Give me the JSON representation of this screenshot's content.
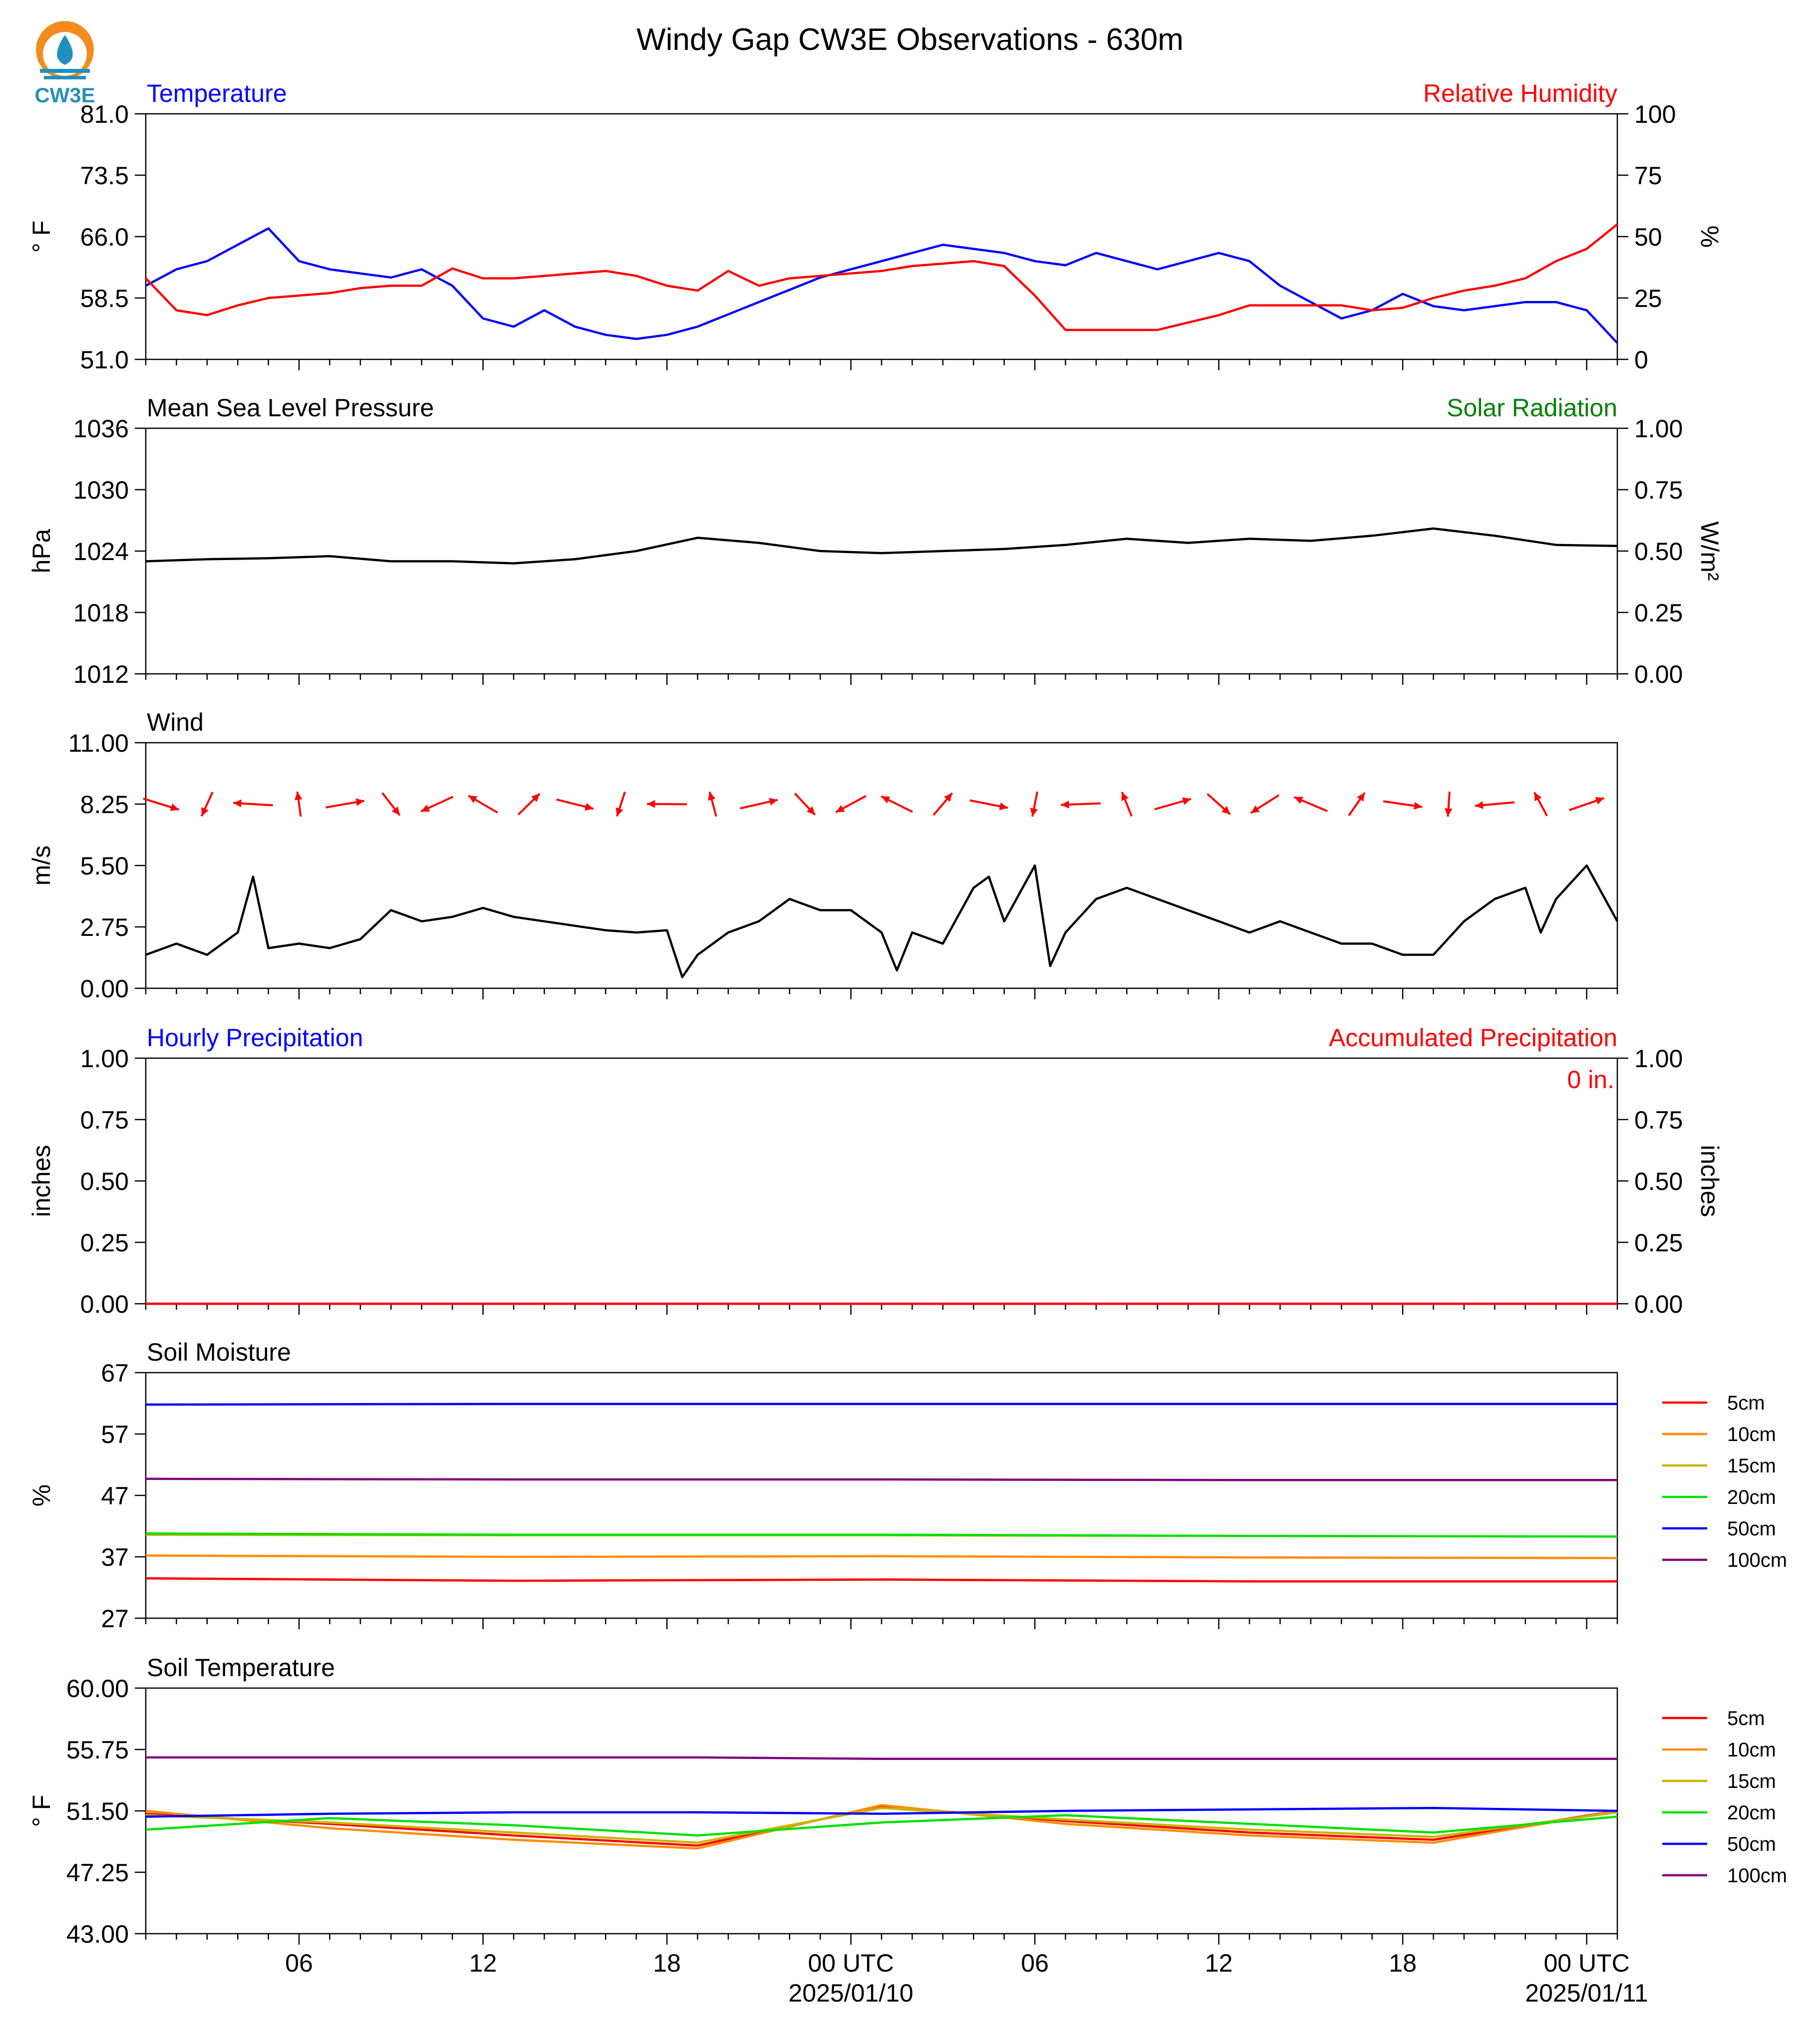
{
  "logo": {
    "text": "CW3E",
    "colors": {
      "orange": "#f28c1e",
      "blue": "#1f8fbf",
      "text": "#2a8fb8"
    }
  },
  "chart_data": [
    {
      "type": "line",
      "id": "temp_rh",
      "title": "Windy Gap CW3E Observations - 630m",
      "left_title": "Temperature",
      "right_title": "Relative Humidity",
      "ylabel": "° F",
      "ylabel2": "%",
      "ylim": [
        51.0,
        81.0
      ],
      "ylim2": [
        0,
        100
      ],
      "yticks": [
        "51.0",
        "58.5",
        "66.0",
        "73.5",
        "81.0"
      ],
      "yticks2": [
        "0",
        "25",
        "50",
        "75",
        "100"
      ],
      "series": [
        {
          "name": "Temperature",
          "color": "#0000ff",
          "axis": "left",
          "x": [
            0,
            1,
            2,
            3,
            4,
            5,
            6,
            7,
            8,
            9,
            10,
            11,
            12,
            13,
            14,
            15,
            16,
            17,
            18,
            19,
            20,
            21,
            22,
            23,
            24,
            25,
            26,
            27,
            28,
            29,
            30,
            31,
            32,
            33,
            34,
            35,
            36,
            37,
            38,
            39,
            40,
            41,
            42,
            43,
            44,
            45,
            46,
            47,
            48
          ],
          "y": [
            60,
            62,
            63,
            65,
            67,
            63,
            62,
            61.5,
            61,
            62,
            60,
            56,
            55,
            57,
            55,
            54,
            53.5,
            54,
            55,
            56.5,
            58,
            59.5,
            61,
            62,
            63,
            64,
            65,
            64.5,
            64,
            63,
            62.5,
            64,
            63,
            62,
            63,
            64,
            63,
            60,
            58,
            56,
            57,
            59,
            57.5,
            57,
            57.5,
            58,
            58,
            57,
            53
          ]
        },
        {
          "name": "Relative Humidity",
          "color": "#ff0000",
          "axis": "right",
          "x": [
            0,
            1,
            2,
            3,
            4,
            5,
            6,
            7,
            8,
            9,
            10,
            11,
            12,
            13,
            14,
            15,
            16,
            17,
            18,
            19,
            20,
            21,
            22,
            23,
            24,
            25,
            26,
            27,
            28,
            29,
            30,
            31,
            32,
            33,
            34,
            35,
            36,
            37,
            38,
            39,
            40,
            41,
            42,
            43,
            44,
            45,
            46,
            47,
            48
          ],
          "y": [
            33,
            20,
            18,
            22,
            25,
            26,
            27,
            29,
            30,
            30,
            37,
            33,
            33,
            34,
            35,
            36,
            34,
            30,
            28,
            36,
            30,
            33,
            34,
            35,
            36,
            38,
            39,
            40,
            38,
            26,
            12,
            12,
            12,
            12,
            15,
            18,
            22,
            22,
            22,
            22,
            20,
            21,
            25,
            28,
            30,
            33,
            40,
            45,
            55
          ]
        }
      ]
    },
    {
      "type": "line",
      "id": "pressure",
      "left_title": "Mean Sea Level Pressure",
      "right_title": "Solar Radiation",
      "ylabel": "hPa",
      "ylabel2": "W/m²",
      "ylim": [
        1012,
        1036
      ],
      "ylim2": [
        0.0,
        1.0
      ],
      "yticks": [
        "1012",
        "1018",
        "1024",
        "1030",
        "1036"
      ],
      "yticks2": [
        "0.00",
        "0.25",
        "0.50",
        "0.75",
        "1.00"
      ],
      "series": [
        {
          "name": "Mean Sea Level Pressure",
          "color": "#000000",
          "axis": "left",
          "x": [
            0,
            2,
            4,
            6,
            8,
            10,
            12,
            14,
            16,
            18,
            20,
            22,
            24,
            26,
            28,
            30,
            32,
            34,
            36,
            38,
            40,
            42,
            44,
            46,
            48
          ],
          "y": [
            1023.0,
            1023.2,
            1023.3,
            1023.5,
            1023.0,
            1023.0,
            1022.8,
            1023.2,
            1024.0,
            1025.3,
            1024.8,
            1024.0,
            1023.8,
            1024.0,
            1024.2,
            1024.6,
            1025.2,
            1024.8,
            1025.2,
            1025.0,
            1025.5,
            1026.2,
            1025.5,
            1024.6,
            1024.5
          ]
        }
      ]
    },
    {
      "type": "line",
      "id": "wind",
      "left_title": "Wind",
      "ylabel": "m/s",
      "ylim": [
        0.0,
        11.0
      ],
      "yticks": [
        "0.00",
        "2.75",
        "5.50",
        "8.25",
        "11.00"
      ],
      "series": [
        {
          "name": "Wind",
          "color": "#000000",
          "axis": "left",
          "x": [
            0,
            1,
            2,
            3,
            3.5,
            4,
            5,
            6,
            7,
            8,
            9,
            10,
            11,
            12,
            13,
            14,
            15,
            16,
            17,
            17.5,
            18,
            19,
            20,
            21,
            22,
            23,
            24,
            24.5,
            25,
            26,
            27,
            27.5,
            28,
            29,
            29.5,
            30,
            31,
            32,
            33,
            34,
            35,
            36,
            37,
            38,
            39,
            40,
            41,
            42,
            43,
            44,
            45,
            45.5,
            46,
            47,
            48
          ],
          "y": [
            1.5,
            2.0,
            1.5,
            2.5,
            5.0,
            1.8,
            2.0,
            1.8,
            2.2,
            3.5,
            3.0,
            3.2,
            3.6,
            3.2,
            3.0,
            2.8,
            2.6,
            2.5,
            2.6,
            0.5,
            1.5,
            2.5,
            3.0,
            4.0,
            3.5,
            3.5,
            2.5,
            0.8,
            2.5,
            2.0,
            4.5,
            5.0,
            3.0,
            5.5,
            1.0,
            2.5,
            4.0,
            4.5,
            4.0,
            3.5,
            3.0,
            2.5,
            3.0,
            2.5,
            2.0,
            2.0,
            1.5,
            1.5,
            3.0,
            4.0,
            4.5,
            2.5,
            4.0,
            5.5,
            3.0
          ]
        }
      ],
      "arrows_color": "#ff0000"
    },
    {
      "type": "line",
      "id": "precip",
      "left_title": "Hourly Precipitation",
      "right_title": "Accumulated Precipitation",
      "annotation": "0 in.",
      "ylabel": "inches",
      "ylabel2": "inches",
      "ylim": [
        0.0,
        1.0
      ],
      "ylim2": [
        0.0,
        1.0
      ],
      "yticks": [
        "0.00",
        "0.25",
        "0.50",
        "0.75",
        "1.00"
      ],
      "yticks2": [
        "0.00",
        "0.25",
        "0.50",
        "0.75",
        "1.00"
      ],
      "series": [
        {
          "name": "Hourly Precipitation",
          "color": "#0000ff",
          "axis": "left",
          "x": [
            0,
            48
          ],
          "y": [
            0,
            0
          ]
        },
        {
          "name": "Accumulated Precipitation",
          "color": "#ff0000",
          "axis": "right",
          "x": [
            0,
            48
          ],
          "y": [
            0,
            0
          ]
        }
      ]
    },
    {
      "type": "line",
      "id": "soil_moisture",
      "left_title": "Soil Moisture",
      "ylabel": "%",
      "ylim": [
        27,
        67
      ],
      "yticks": [
        "27",
        "37",
        "47",
        "57",
        "67"
      ],
      "legend": "right",
      "series": [
        {
          "name": "5cm",
          "color": "#ff0000",
          "x": [
            0,
            12,
            24,
            36,
            48
          ],
          "y": [
            33.5,
            33.1,
            33.3,
            33.0,
            33.0
          ]
        },
        {
          "name": "10cm",
          "color": "#ff8c00",
          "x": [
            0,
            12,
            24,
            36,
            48
          ],
          "y": [
            37.2,
            37.0,
            37.1,
            36.9,
            36.8
          ]
        },
        {
          "name": "15cm",
          "color": "#c8b400",
          "x": [
            0,
            12,
            24,
            36,
            48
          ],
          "y": [
            40.6,
            40.5,
            40.5,
            40.4,
            40.3
          ]
        },
        {
          "name": "20cm",
          "color": "#00e000",
          "x": [
            0,
            12,
            24,
            36,
            48
          ],
          "y": [
            40.8,
            40.6,
            40.6,
            40.4,
            40.3
          ]
        },
        {
          "name": "50cm",
          "color": "#0000ff",
          "x": [
            0,
            12,
            24,
            36,
            48
          ],
          "y": [
            61.8,
            61.9,
            61.9,
            61.9,
            61.9
          ]
        },
        {
          "name": "100cm",
          "color": "#800080",
          "x": [
            0,
            12,
            24,
            36,
            48
          ],
          "y": [
            49.7,
            49.6,
            49.6,
            49.5,
            49.5
          ]
        }
      ]
    },
    {
      "type": "line",
      "id": "soil_temperature",
      "left_title": "Soil Temperature",
      "ylabel": "° F",
      "ylim": [
        43.0,
        60.0
      ],
      "yticks": [
        "43.00",
        "47.25",
        "51.50",
        "55.75",
        "60.00"
      ],
      "legend": "right",
      "xticks": [
        "06",
        "12",
        "18",
        "00 UTC",
        "06",
        "12",
        "18",
        "00 UTC"
      ],
      "xtick_hours": [
        5,
        11,
        17,
        23,
        29,
        35,
        41,
        47
      ],
      "date_labels": [
        "2025/01/10",
        "2025/01/11"
      ],
      "series": [
        {
          "name": "5cm",
          "color": "#ff0000",
          "x": [
            0,
            6,
            12,
            18,
            24,
            30,
            36,
            42,
            48
          ],
          "y": [
            51.3,
            50.6,
            49.8,
            49.1,
            51.8,
            50.8,
            50.0,
            49.5,
            51.5
          ]
        },
        {
          "name": "10cm",
          "color": "#ff8c00",
          "x": [
            0,
            6,
            12,
            18,
            24,
            30,
            36,
            42,
            48
          ],
          "y": [
            51.5,
            50.3,
            49.5,
            48.9,
            51.9,
            50.6,
            49.8,
            49.3,
            51.5
          ]
        },
        {
          "name": "15cm",
          "color": "#c8b400",
          "x": [
            0,
            6,
            12,
            18,
            24,
            30,
            36,
            42,
            48
          ],
          "y": [
            51.2,
            50.7,
            50.0,
            49.3,
            51.7,
            50.9,
            50.2,
            49.7,
            51.4
          ]
        },
        {
          "name": "20cm",
          "color": "#00e000",
          "x": [
            0,
            6,
            12,
            18,
            24,
            30,
            36,
            42,
            48
          ],
          "y": [
            50.2,
            51.0,
            50.5,
            49.8,
            50.7,
            51.2,
            50.6,
            50.0,
            51.1
          ]
        },
        {
          "name": "50cm",
          "color": "#0000ff",
          "x": [
            0,
            6,
            12,
            18,
            24,
            30,
            36,
            42,
            48
          ],
          "y": [
            51.1,
            51.3,
            51.4,
            51.4,
            51.3,
            51.5,
            51.6,
            51.7,
            51.5
          ]
        },
        {
          "name": "100cm",
          "color": "#800080",
          "x": [
            0,
            6,
            12,
            18,
            24,
            30,
            36,
            42,
            48
          ],
          "y": [
            55.2,
            55.2,
            55.2,
            55.2,
            55.1,
            55.1,
            55.1,
            55.1,
            55.1
          ]
        }
      ]
    }
  ]
}
